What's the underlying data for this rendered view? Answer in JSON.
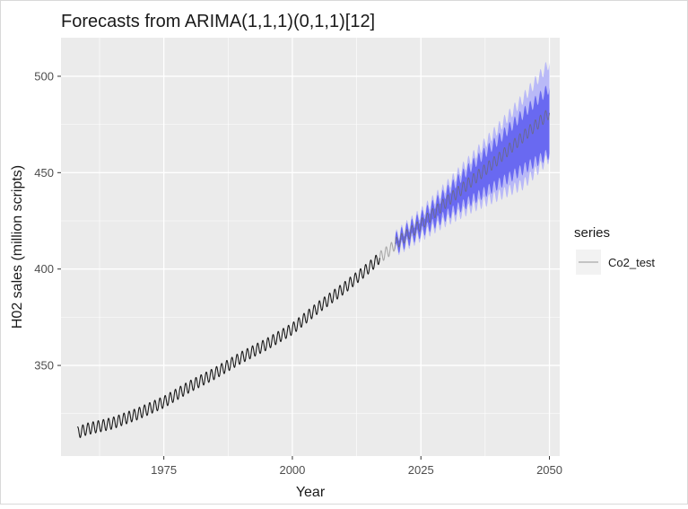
{
  "chart_data": {
    "type": "line",
    "title": "Forecasts from ARIMA(1,1,1)(0,1,1)[12]",
    "xlabel": "Year",
    "ylabel": "H02 sales (million scripts)",
    "xlim": [
      1955,
      2052
    ],
    "ylim": [
      303,
      520
    ],
    "x_ticks": [
      1975,
      2000,
      2025,
      2050
    ],
    "x_tick_labels": [
      "1975",
      "2000",
      "2025",
      "2050"
    ],
    "y_ticks": [
      350,
      400,
      450,
      500
    ],
    "y_tick_labels": [
      "350",
      "400",
      "450",
      "500"
    ],
    "grid": true,
    "legend": {
      "title": "series",
      "placement": "right",
      "entries": [
        "Co2_test"
      ]
    },
    "colors": {
      "observed": "#1a1a1a",
      "test_series": "#a9a9a9",
      "interval_80": "#5b5bf0",
      "interval_95": "#b9b9f7",
      "panel_background": "#ebebeb",
      "grid": "#ffffff"
    },
    "series": [
      {
        "role": "observed",
        "x": [
          1958.2,
          1960,
          1965,
          1970,
          1975,
          1980,
          1985,
          1990,
          1995,
          2000,
          2005,
          2010,
          2015,
          2017
        ],
        "values": [
          315,
          317,
          320,
          325,
          331,
          339,
          346,
          354,
          361,
          369,
          380,
          390,
          401,
          406
        ]
      },
      {
        "name": "Co2_test",
        "x": [
          2017,
          2018,
          2019,
          2020
        ],
        "values": [
          406,
          408,
          410,
          413
        ]
      },
      {
        "role": "forecast",
        "x": [
          2020,
          2025,
          2030,
          2035,
          2040,
          2045,
          2050
        ],
        "values": [
          413,
          423,
          435,
          446,
          457,
          469,
          481
        ],
        "lower_80": [
          410,
          419,
          428,
          436,
          444,
          452,
          460
        ],
        "upper_80": [
          416,
          427,
          440,
          454,
          467,
          481,
          494
        ],
        "lower_95": [
          409,
          417,
          425,
          432,
          438,
          444,
          458
        ],
        "upper_95": [
          417,
          429,
          443,
          458,
          473,
          489,
          507
        ]
      }
    ],
    "seasonal_amplitude": 3
  }
}
